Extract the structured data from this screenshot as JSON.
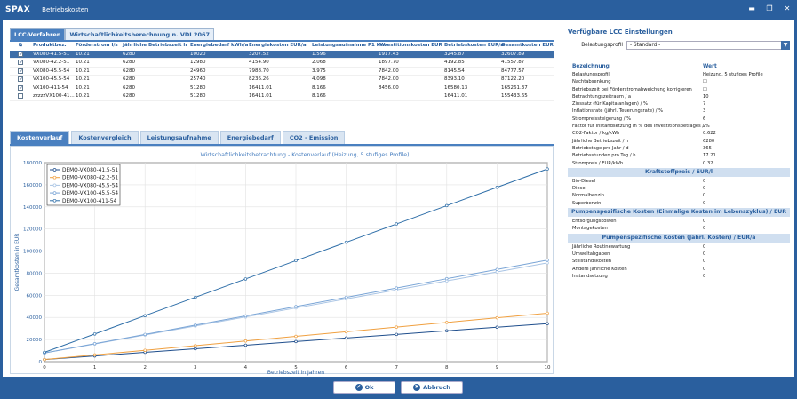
{
  "window": {
    "logo": "SPAX",
    "title": "Betriebskosten",
    "min_icon": "▬",
    "max_icon": "❐",
    "close_icon": "✕"
  },
  "tabs_top": [
    {
      "label": "LCC-Verfahren"
    },
    {
      "label": "Wirtschaftlichkeitsberechnung n. VDI 2067"
    }
  ],
  "grid": {
    "header_icon": "⧉",
    "columns": [
      "Produktbez.",
      "Förderstrom l/s",
      "Jährliche Betriebszeit h",
      "Energiebedarf kWh/a",
      "Energiekosten EUR/a",
      "Leistungsaufnahme P1 kW",
      "Investitionskosten EUR",
      "Betriebskosten EUR/a",
      "Gesamtkosten EUR"
    ],
    "rows": [
      {
        "checked": true,
        "selected": true,
        "cells": [
          "VX080-41.5-51",
          "10.21",
          "6280",
          "10020",
          "3207.52",
          "1.596",
          "1917.43",
          "3245.87",
          "32607.89"
        ]
      },
      {
        "checked": true,
        "selected": false,
        "cells": [
          "VX080-42.2-51",
          "10.21",
          "6280",
          "12980",
          "4154.90",
          "2.068",
          "1897.70",
          "4192.85",
          "41557.87"
        ]
      },
      {
        "checked": true,
        "selected": false,
        "cells": [
          "VX080-45.5-54",
          "10.21",
          "6280",
          "24960",
          "7988.70",
          "3.975",
          "7842.00",
          "8145.54",
          "84777.57"
        ]
      },
      {
        "checked": true,
        "selected": false,
        "cells": [
          "VX100-45.5-54",
          "10.21",
          "6280",
          "25740",
          "8236.26",
          "4.098",
          "7842.00",
          "8393.10",
          "87122.20"
        ]
      },
      {
        "checked": true,
        "selected": false,
        "cells": [
          "VX100-411-54",
          "10.21",
          "6280",
          "51280",
          "16411.01",
          "8.166",
          "8456.00",
          "16580.13",
          "165261.37"
        ]
      },
      {
        "checked": false,
        "selected": false,
        "cells": [
          "zzzzzVX100-41...",
          "10.21",
          "6280",
          "51280",
          "16411.01",
          "8.166",
          "",
          "16411.01",
          "155433.65"
        ]
      }
    ]
  },
  "tabs_chart": [
    {
      "label": "Kostenverlauf"
    },
    {
      "label": "Kostenvergleich"
    },
    {
      "label": "Leistungsaufnahme"
    },
    {
      "label": "Energiebedarf"
    },
    {
      "label": "CO2 - Emission"
    }
  ],
  "chart_data": {
    "type": "line",
    "title": "Wirtschaftlichkeitsbetrachtung - Kostenverlauf (Heizung, 5 stufiges Profile)",
    "xlabel": "Betriebszeit in Jahren",
    "ylabel": "Gesamtkosten in EUR",
    "xlim": [
      0,
      10
    ],
    "ylim": [
      0,
      180000
    ],
    "xticks": [
      0,
      1,
      2,
      3,
      4,
      5,
      6,
      7,
      8,
      9,
      10
    ],
    "yticks": [
      0,
      20000,
      40000,
      60000,
      80000,
      100000,
      120000,
      140000,
      160000,
      180000
    ],
    "legend_position": "top-left",
    "x": [
      0,
      1,
      2,
      3,
      4,
      5,
      6,
      7,
      8,
      9,
      10
    ],
    "series": [
      {
        "name": "DEMO-VX080-41.5-51",
        "color": "#1f4e8c",
        "values": [
          1917,
          5163,
          8409,
          11655,
          14901,
          18147,
          21393,
          24639,
          27885,
          31131,
          34376
        ]
      },
      {
        "name": "DEMO-VX080-42.2-51",
        "color": "#f0a040",
        "values": [
          1898,
          6091,
          10283,
          14476,
          18669,
          22862,
          27055,
          31248,
          35441,
          39634,
          43826
        ]
      },
      {
        "name": "DEMO-VX080-45.5-54",
        "color": "#a9c4e4",
        "values": [
          7842,
          15988,
          24133,
          32279,
          40424,
          48570,
          56715,
          64861,
          73006,
          81152,
          89297
        ]
      },
      {
        "name": "DEMO-VX100-45.5-54",
        "color": "#7aa5d6",
        "values": [
          7842,
          16235,
          24628,
          33021,
          41414,
          49808,
          58201,
          66594,
          74987,
          83380,
          91773
        ]
      },
      {
        "name": "DEMO-VX100-411-54",
        "color": "#2e6ea8",
        "values": [
          8456,
          25036,
          41616,
          58196,
          74776,
          91357,
          107937,
          124517,
          141097,
          157677,
          174257
        ]
      }
    ]
  },
  "right": {
    "title": "Verfügbare LCC Einstellungen",
    "profile_label": "Belastungsprofil",
    "profile_value": "- Standard -",
    "dd_icon": "▼",
    "col_name": "Bezeichnung",
    "col_value": "Wert",
    "rows1": [
      {
        "name": "Belastungsprofil",
        "value": "Heizung, 5 stufiges Profile"
      },
      {
        "name": "Nachtabsenkung",
        "value": "☐"
      },
      {
        "name": "Betriebszeit bei Förderstromabweichung korrigieren",
        "value": "☐"
      },
      {
        "name": "Betrachtungszeitraum / a",
        "value": "10"
      },
      {
        "name": "Zinssatz (für Kapitalanlagen) / %",
        "value": "7"
      },
      {
        "name": "Inflationsrate (jährl. Teuerungsrate) / %",
        "value": "3"
      },
      {
        "name": "Strompreissteigerung / %",
        "value": "6"
      },
      {
        "name": "Faktor für Instandsetzung in % des Investitionsbetrages / %",
        "value": "2"
      },
      {
        "name": "CO2-Faktor / kg/kWh",
        "value": "0.622"
      },
      {
        "name": "Jährliche Betriebszeit / h",
        "value": "6280"
      },
      {
        "name": "Betriebstage pro Jahr / d",
        "value": "365"
      },
      {
        "name": "Betriebsstunden pro Tag / h",
        "value": "17.21"
      },
      {
        "name": "Strompreis / EUR/kWh",
        "value": "0.32"
      }
    ],
    "sec2": "Kraftstoffpreis / EUR/l",
    "rows2": [
      {
        "name": "Bio-Diesel",
        "value": "0"
      },
      {
        "name": "Diesel",
        "value": "0"
      },
      {
        "name": "Normalbenzin",
        "value": "0"
      },
      {
        "name": "Superbenzin",
        "value": "0"
      }
    ],
    "sec3": "Pumpenspezifische Kosten (Einmalige Kosten im Lebenszyklus) / EUR",
    "rows3": [
      {
        "name": "Entsorgungskosten",
        "value": "0"
      },
      {
        "name": "Montagekosten",
        "value": "0"
      }
    ],
    "sec4": "Pumpenspezifische Kosten (Jährl. Kosten) / EUR/a",
    "rows4": [
      {
        "name": "Jährliche Routinewartung",
        "value": "0"
      },
      {
        "name": "Umweltabgaben",
        "value": "0"
      },
      {
        "name": "Stillstandskosten",
        "value": "0"
      },
      {
        "name": "Andere jährliche Kosten",
        "value": "0"
      },
      {
        "name": "Instandsetzung",
        "value": "0"
      }
    ]
  },
  "footer": {
    "ok_label": "Ok",
    "cancel_label": "Abbruch",
    "ok_icon": "✔",
    "cancel_icon": "✖"
  }
}
